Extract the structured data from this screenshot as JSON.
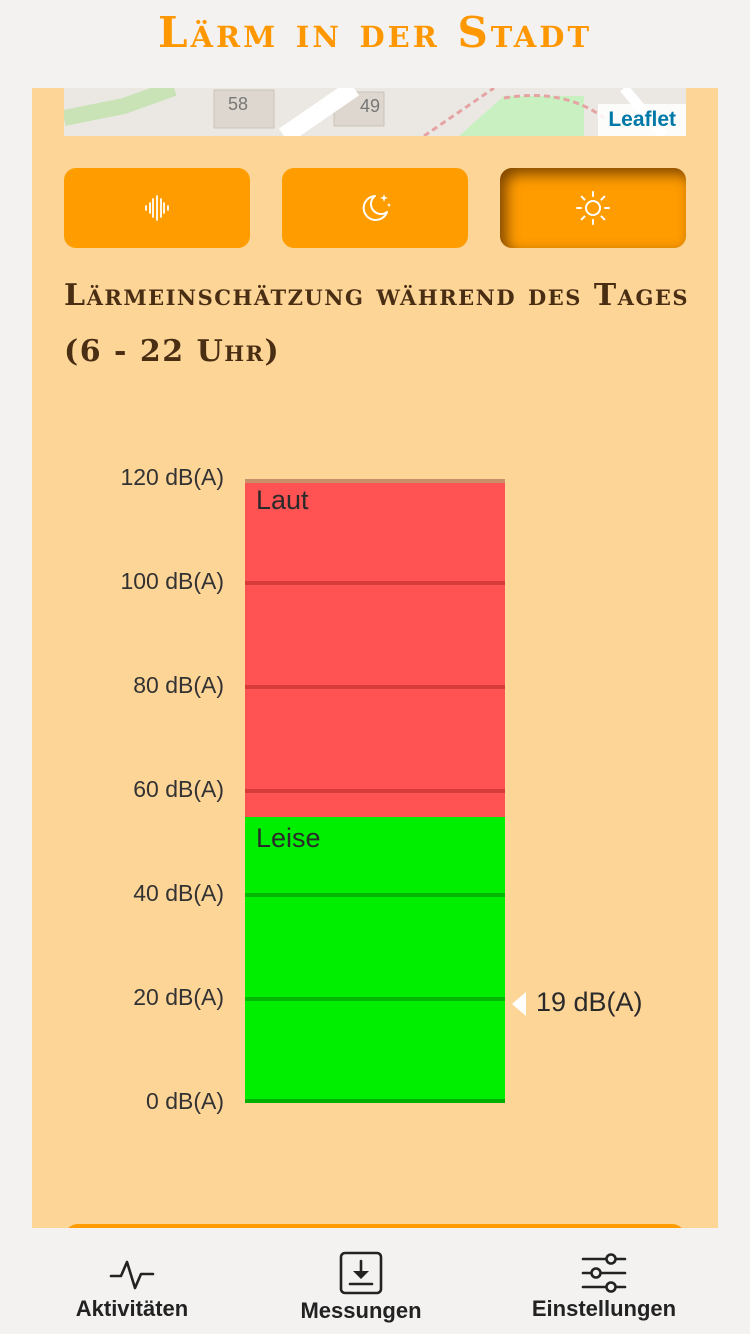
{
  "app": {
    "title": "Lärm in der Stadt"
  },
  "map": {
    "attribution": "Leaflet",
    "house_numbers": [
      "58",
      "49"
    ]
  },
  "mode_buttons": [
    {
      "icon": "sound-wave-icon",
      "active": false
    },
    {
      "icon": "moon-stars-icon",
      "active": false
    },
    {
      "icon": "sun-icon",
      "active": true
    }
  ],
  "section": {
    "title": "Lärmeinschätzung während des Tages (6 - 22 Uhr)"
  },
  "noise_scale": {
    "unit": "dB(A)",
    "range": [
      0,
      120
    ],
    "ticks": [
      "120 dB(A)",
      "100 dB(A)",
      "80 dB(A)",
      "60 dB(A)",
      "40 dB(A)",
      "20 dB(A)",
      "0 dB(A)"
    ],
    "zones": [
      {
        "label": "Laut",
        "from": 55,
        "to": 120,
        "color": "#ff5252"
      },
      {
        "label": "Leise",
        "from": 0,
        "to": 55,
        "color": "#00ee00"
      }
    ],
    "current_value": 19,
    "current_label": "19 dB(A)"
  },
  "tabbar": {
    "items": [
      {
        "label": "Aktivitäten",
        "icon": "activity-pulse-icon"
      },
      {
        "label": "Messungen",
        "icon": "download-box-icon"
      },
      {
        "label": "Einstellungen",
        "icon": "sliders-icon"
      }
    ]
  },
  "colors": {
    "accent": "#ff9800",
    "panel": "#fdd597",
    "button": "#ff9c00",
    "title_dark": "#4a2e14"
  }
}
